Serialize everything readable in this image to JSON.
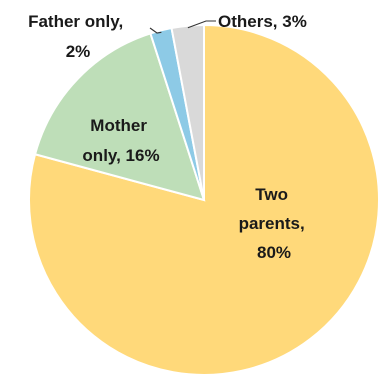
{
  "chart_data": {
    "type": "pie",
    "title": "",
    "start_angle_deg": 0,
    "direction": "clockwise",
    "slices": [
      {
        "label_lines": [
          "Two",
          "parents,",
          "80%"
        ],
        "value": 80,
        "color": "#FFD97A"
      },
      {
        "label_lines": [
          "Mother",
          "only, 16%"
        ],
        "value": 16,
        "color": "#BEDEB8"
      },
      {
        "label_lines": [
          "Father only,",
          "2%"
        ],
        "value": 2,
        "color": "#8DCAE6"
      },
      {
        "label_lines": [
          "Others, 3%"
        ],
        "value": 3,
        "color": "#D9D9D9"
      }
    ]
  }
}
